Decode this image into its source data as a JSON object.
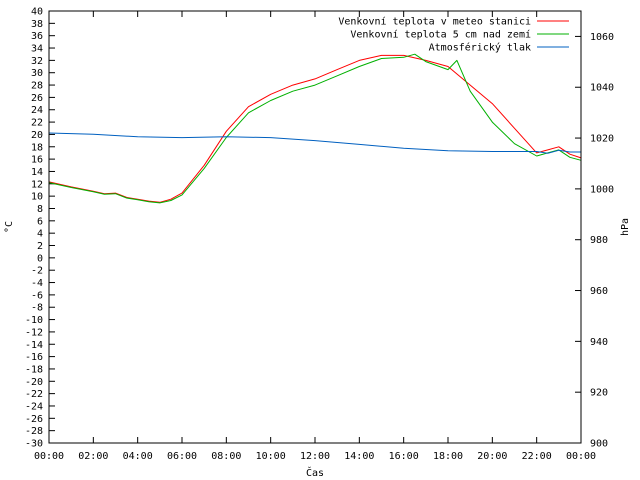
{
  "chart_data": {
    "type": "line",
    "title": "",
    "xlabel": "Čas",
    "ylabel_left": "°C",
    "ylabel_right": "hPa",
    "xlim": [
      0,
      24
    ],
    "ylim_left": [
      -30,
      40
    ],
    "ylim_right": [
      900,
      1070
    ],
    "x_tick_labels": [
      "00:00",
      "02:00",
      "04:00",
      "06:00",
      "08:00",
      "10:00",
      "12:00",
      "14:00",
      "16:00",
      "18:00",
      "20:00",
      "22:00",
      "00:00"
    ],
    "y_left_ticks": [
      40,
      38,
      36,
      34,
      32,
      30,
      28,
      26,
      24,
      22,
      20,
      18,
      16,
      14,
      12,
      10,
      8,
      6,
      4,
      2,
      0,
      -2,
      -4,
      -6,
      -8,
      -10,
      -12,
      -14,
      -16,
      -18,
      -20,
      -22,
      -24,
      -26,
      -28,
      -30
    ],
    "y_right_ticks": [
      1060,
      1040,
      1020,
      1000,
      980,
      960,
      940,
      920,
      900
    ],
    "grid": false,
    "legend_position": "top-right",
    "series": [
      {
        "name": "Venkovní teplota v meteo stanici",
        "color": "#ff0000",
        "axis": "left",
        "x": [
          0,
          1,
          2,
          2.5,
          3,
          3.5,
          4,
          4.5,
          5,
          5.5,
          6,
          7,
          8,
          9,
          10,
          11,
          12,
          13,
          14,
          15,
          16,
          17,
          18,
          19,
          20,
          21,
          22,
          22.5,
          23,
          23.5,
          24
        ],
        "y": [
          12.3,
          11.5,
          10.8,
          10.4,
          10.5,
          9.8,
          9.5,
          9.2,
          9.0,
          9.5,
          10.5,
          15.0,
          20.5,
          24.5,
          26.5,
          28.0,
          29.0,
          30.5,
          32.0,
          32.8,
          32.8,
          32.0,
          31.0,
          28.0,
          25.0,
          21.0,
          17.0,
          17.5,
          18.0,
          16.8,
          16.2
        ]
      },
      {
        "name": "Venkovní teplota 5 cm nad zemí",
        "color": "#00b000",
        "axis": "left",
        "x": [
          0,
          1,
          2,
          2.5,
          3,
          3.5,
          4,
          4.5,
          5,
          5.5,
          6,
          7,
          8,
          9,
          10,
          11,
          12,
          13,
          14,
          15,
          16,
          16.5,
          17,
          18,
          18.4,
          19,
          20,
          21,
          22,
          22.5,
          23,
          23.5,
          24
        ],
        "y": [
          12.2,
          11.4,
          10.7,
          10.3,
          10.4,
          9.7,
          9.4,
          9.1,
          8.9,
          9.3,
          10.2,
          14.5,
          19.5,
          23.5,
          25.5,
          27.0,
          28.0,
          29.5,
          31.0,
          32.3,
          32.5,
          33.0,
          31.8,
          30.5,
          32.0,
          27.0,
          22.0,
          18.5,
          16.5,
          17.0,
          17.5,
          16.3,
          15.8
        ]
      },
      {
        "name": "Atmosférický tlak",
        "color": "#0060c0",
        "axis": "right",
        "x": [
          0,
          2,
          4,
          6,
          8,
          10,
          12,
          14,
          16,
          18,
          20,
          22,
          22.5,
          23,
          23.5,
          24
        ],
        "y": [
          1022,
          1021.5,
          1020.5,
          1020.2,
          1020.5,
          1020.2,
          1019,
          1017.5,
          1016,
          1015,
          1014.7,
          1014.7,
          1014,
          1015.2,
          1014.5,
          1014.5
        ]
      }
    ]
  }
}
